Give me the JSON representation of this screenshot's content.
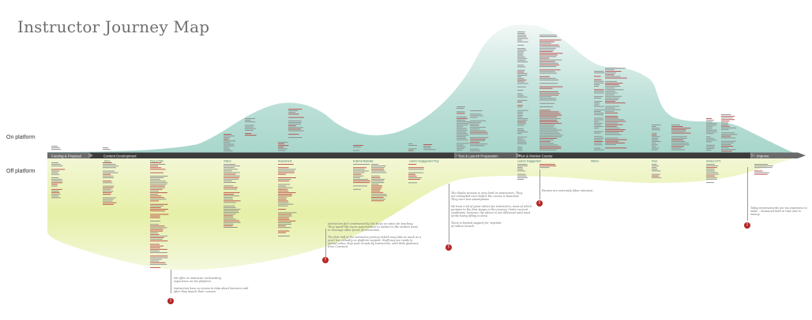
{
  "title": "Instructor Journey Map",
  "platform_labels": {
    "on": "On platform",
    "off": "Off platform"
  },
  "phases": [
    "Funding & Proposal",
    "Content Development",
    "Test & Launch Preparation",
    "Run & Monitor Course",
    "Improve"
  ],
  "sub_phases": [
    "Story",
    "Prep & Plan",
    "Videos",
    "Assessment",
    "External Materials",
    "Learner Engagement Prep",
    "Learner Engagement",
    "Metrics",
    "Pace",
    "Grades & PC"
  ],
  "notes": [
    {
      "lines": [
        "We offer no instructor on-boarding",
        "experience on the platform.",
        "",
        "Instructors have no access to data about learners until",
        "after they launch their courses."
      ]
    },
    {
      "lines": [
        "Instructors feel constrained by the focus on video for teaching.",
        "They would like more opportunities to mentor in the written word,",
        "or leverage other forms of interaction.",
        "",
        "The first half of the instructor journey (which may take as much as a",
        "year) has virtually no platform support. Staff may see ready to",
        "upload video; they seek Scripts by Instructors, with little guidance",
        "from Coursera."
      ]
    },
    {
      "lines": [
        "The Studio process is very hard on instructors. They",
        "are exhausted even before the course is launched.",
        "They can't test assumptions.",
        "",
        "We have a lot of great advice for instructors, most of which",
        "pertains to the first stages in the journey. Under current",
        "conditions, however, the advice is not delivered until most",
        "of the heavy lifting is done.",
        "",
        "There is limited support for 'reprints'",
        "of reduce launch."
      ]
    },
    {
      "lines": [
        "Forums are extremely labor intensive."
      ]
    },
    {
      "lines": [
        "Today improvements are too expensive to",
        "make – measured both in time and in money."
      ]
    }
  ],
  "colors": {
    "on_platform_fill": "#cfe7e2",
    "off_platform_fill": "#e4efb2",
    "timeline_dark": "#3d3d3d",
    "timeline_mid": "#5a5a5a",
    "alert": "#b52424",
    "title": "#6f6f6f"
  }
}
